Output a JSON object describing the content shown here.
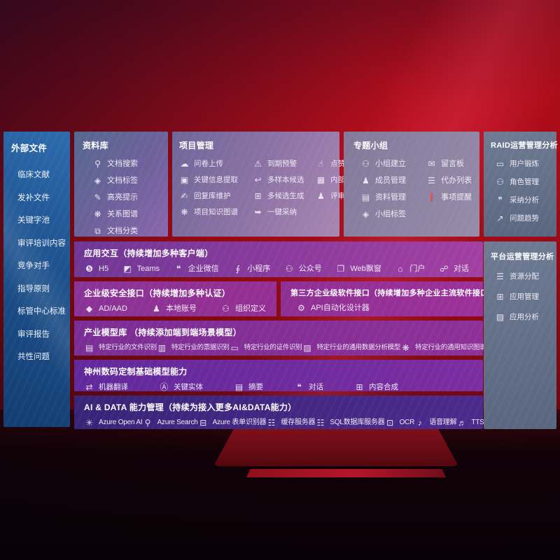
{
  "colors": {
    "background_red": "#9c0b16",
    "background_dark": "#27040a",
    "sidebar_blue": "#1d518d",
    "panel_purple": "#8d3b9e",
    "panel_magenta": "#962f93",
    "panel_indigo": "#3a2478",
    "panel_slate": "#67748c",
    "text": "#ffffff"
  },
  "sidebar": {
    "title": "外部文件",
    "items": [
      {
        "label": "临床文献"
      },
      {
        "label": "发补文件"
      },
      {
        "label": "关键字池"
      },
      {
        "label": "审评培训内容"
      },
      {
        "label": "竞争对手"
      },
      {
        "label": "指导原则"
      },
      {
        "label": "标管中心标准"
      },
      {
        "label": "审评报告"
      },
      {
        "label": "共性问题"
      }
    ]
  },
  "panels": {
    "library": {
      "title": "资料库",
      "items": [
        {
          "icon": "doc-search-icon",
          "label": "文档搜索"
        },
        {
          "icon": "doc-tag-icon",
          "label": "文档标签"
        },
        {
          "icon": "highlight-icon",
          "label": "高亮提示"
        },
        {
          "icon": "relation-graph-icon",
          "label": "关系图谱"
        },
        {
          "icon": "doc-classify-icon",
          "label": "文档分类"
        }
      ]
    },
    "project": {
      "title": "项目管理",
      "items": [
        {
          "icon": "upload-cloud-icon",
          "label": "问卷上传"
        },
        {
          "icon": "alarm-icon",
          "label": "到期预警"
        },
        {
          "icon": "thumbs-up-icon",
          "label": "点赞感谢"
        },
        {
          "icon": "key-info-extract-icon",
          "label": "关键信息提取"
        },
        {
          "icon": "multi-sample-icon",
          "label": "多样本候选"
        },
        {
          "icon": "expert-rank-icon",
          "label": "内部专家排名"
        },
        {
          "icon": "reply-maintain-icon",
          "label": "回复库维护"
        },
        {
          "icon": "multi-generate-icon",
          "label": "多候选生成"
        },
        {
          "icon": "reviewer-portrait-icon",
          "label": "评审员画像"
        },
        {
          "icon": "project-kg-icon",
          "label": "项目知识图谱"
        },
        {
          "icon": "one-click-adopt-icon",
          "label": "一键采纳"
        }
      ]
    },
    "group": {
      "title": "专题小组",
      "items": [
        {
          "icon": "group-create-icon",
          "label": "小组建立"
        },
        {
          "icon": "bbs-board-icon",
          "label": "留言板"
        },
        {
          "icon": "member-mgmt-icon",
          "label": "成员管理"
        },
        {
          "icon": "todo-list-icon",
          "label": "代办列表"
        },
        {
          "icon": "material-mgmt-icon",
          "label": "资料管理"
        },
        {
          "icon": "reminder-bell-icon",
          "label": "事项提醒"
        },
        {
          "icon": "group-tag-icon",
          "label": "小组标签"
        }
      ]
    },
    "raid": {
      "title": "RAID运营管理分析",
      "items": [
        {
          "icon": "user-card-icon",
          "label": "用户锻炼"
        },
        {
          "icon": "role-mgmt-icon",
          "label": "角色管理"
        },
        {
          "icon": "adopt-analysis-icon",
          "label": "采纳分析"
        },
        {
          "icon": "issue-trend-icon",
          "label": "问题趋势"
        }
      ]
    },
    "app_interaction": {
      "title": "应用交互（持续增加多种客户端）",
      "items": [
        {
          "icon": "h5-icon",
          "label": "H5"
        },
        {
          "icon": "teams-icon",
          "label": "Teams"
        },
        {
          "icon": "wecom-icon",
          "label": "企业微信"
        },
        {
          "icon": "miniprogram-icon",
          "label": "小程序"
        },
        {
          "icon": "official-account-icon",
          "label": "公众号"
        },
        {
          "icon": "web-popup-icon",
          "label": "Web飘窗"
        },
        {
          "icon": "portal-icon",
          "label": "门户"
        },
        {
          "icon": "dialog-icon",
          "label": "对话"
        }
      ]
    },
    "security": {
      "title": "企业级安全接口（持续增加多种认证）",
      "items": [
        {
          "icon": "shield-icon",
          "label": "AD/AAD"
        },
        {
          "icon": "local-account-icon",
          "label": "本地账号"
        },
        {
          "icon": "org-define-icon",
          "label": "组织定义"
        }
      ]
    },
    "third_party": {
      "title": "第三方企业级软件接口（持续增加多种企业主流软件接口）",
      "items": [
        {
          "icon": "api-designer-gear-icon",
          "label": "API自动化设计器"
        }
      ]
    },
    "industry_models": {
      "title": "产业模型库 （持续添加端到端场景模型）",
      "items": [
        {
          "icon": "file-recog-icon",
          "label": "特定行业的文件识别"
        },
        {
          "icon": "receipt-recog-icon",
          "label": "特定行业的票据识别"
        },
        {
          "icon": "cert-recog-icon",
          "label": "特定行业的证件识别"
        },
        {
          "icon": "data-analysis-model-icon",
          "label": "特定行业的通用数据分析模型"
        },
        {
          "icon": "knowledge-graph-model-icon",
          "label": "特定行业的通用知识图谱模型"
        }
      ]
    },
    "base_models": {
      "title": "神州数码定制基础模型能力",
      "items": [
        {
          "icon": "translate-icon",
          "label": "机器翻译"
        },
        {
          "icon": "key-entity-icon",
          "label": "关键实体"
        },
        {
          "icon": "summary-icon",
          "label": "摘要"
        },
        {
          "icon": "chat-bubble-icon",
          "label": "对话"
        },
        {
          "icon": "content-synthesis-icon",
          "label": "内容合成"
        }
      ]
    },
    "ai_data": {
      "title": "AI & DATA 能力管理（持续为接入更多AI&DATA能力）",
      "items": [
        {
          "icon": "openai-icon",
          "label": "Azure Open AI"
        },
        {
          "icon": "azure-search-icon",
          "label": "Azure Search"
        },
        {
          "icon": "form-recognizer-icon",
          "label": "Azure 表单识别器"
        },
        {
          "icon": "cache-server-icon",
          "label": "缓存服务器"
        },
        {
          "icon": "sql-db-icon",
          "label": "SQL数据库服务器"
        },
        {
          "icon": "ocr-icon",
          "label": "OCR"
        },
        {
          "icon": "speech-icon",
          "label": "语音理解"
        },
        {
          "icon": "tts-icon",
          "label": "TTS"
        }
      ]
    },
    "platform": {
      "title": "平台运营管理分析",
      "items": [
        {
          "icon": "resource-alloc-icon",
          "label": "资源分配"
        },
        {
          "icon": "app-mgmt-icon",
          "label": "应用管理"
        },
        {
          "icon": "app-analysis-icon",
          "label": "应用分析"
        }
      ]
    }
  },
  "icon_glyphs": {
    "doc-search-icon": "⚲",
    "doc-tag-icon": "◈",
    "highlight-icon": "✎",
    "relation-graph-icon": "❋",
    "doc-classify-icon": "⧉",
    "upload-cloud-icon": "☁",
    "alarm-icon": "⚠",
    "thumbs-up-icon": "☝",
    "key-info-extract-icon": "▣",
    "multi-sample-icon": "↩",
    "expert-rank-icon": "▦",
    "reply-maintain-icon": "✍",
    "multi-generate-icon": "⊞",
    "reviewer-portrait-icon": "♟",
    "project-kg-icon": "❋",
    "one-click-adopt-icon": "➥",
    "group-create-icon": "⚇",
    "bbs-board-icon": "✉",
    "member-mgmt-icon": "♟",
    "todo-list-icon": "☰",
    "material-mgmt-icon": "▤",
    "reminder-bell-icon": "❗",
    "group-tag-icon": "◈",
    "user-card-icon": "▭",
    "role-mgmt-icon": "⚇",
    "adopt-analysis-icon": "❞",
    "issue-trend-icon": "↗",
    "h5-icon": "❺",
    "teams-icon": "◩",
    "wecom-icon": "❝",
    "miniprogram-icon": "∮",
    "official-account-icon": "⚇",
    "web-popup-icon": "❐",
    "portal-icon": "⌂",
    "dialog-icon": "☍",
    "shield-icon": "◆",
    "local-account-icon": "♟",
    "org-define-icon": "⚇",
    "api-designer-gear-icon": "⚙",
    "file-recog-icon": "▤",
    "receipt-recog-icon": "▥",
    "cert-recog-icon": "▭",
    "data-analysis-model-icon": "▨",
    "knowledge-graph-model-icon": "❋",
    "translate-icon": "⇄",
    "key-entity-icon": "Ⓐ",
    "summary-icon": "▤",
    "chat-bubble-icon": "❝",
    "content-synthesis-icon": "⊞",
    "openai-icon": "✳",
    "azure-search-icon": "⚲",
    "form-recognizer-icon": "⊟",
    "cache-server-icon": "☷",
    "sql-db-icon": "☷",
    "ocr-icon": "⊡",
    "speech-icon": "♪",
    "tts-icon": "♬",
    "resource-alloc-icon": "☰",
    "app-mgmt-icon": "⊞",
    "app-analysis-icon": "▨"
  }
}
